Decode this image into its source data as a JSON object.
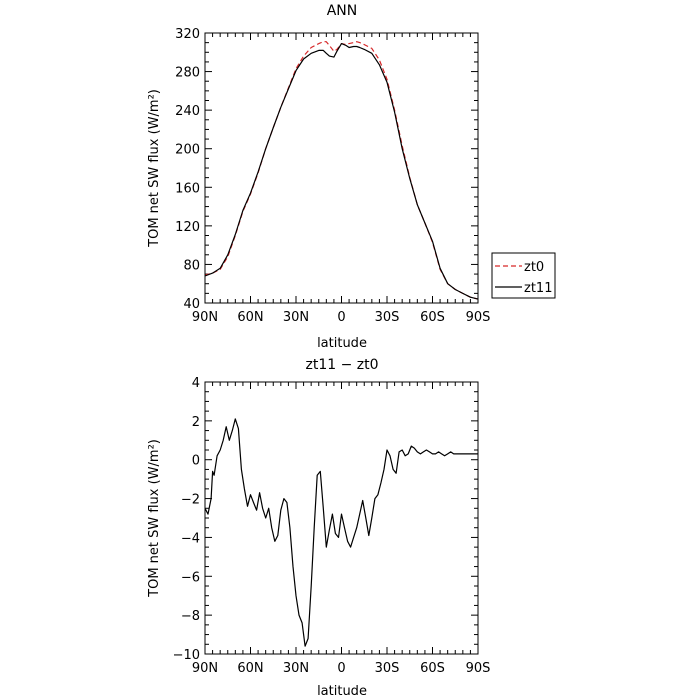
{
  "chart_data": [
    {
      "type": "line",
      "title": "ANN",
      "xlabel": "latitude",
      "ylabel": "TOM net SW flux (W/m²)",
      "xlim": [
        90,
        -90
      ],
      "ylim": [
        40,
        320
      ],
      "xticks": [
        90,
        60,
        30,
        0,
        -30,
        -60,
        -90
      ],
      "xtick_labels": [
        "90N",
        "60N",
        "30N",
        "0",
        "30S",
        "60S",
        "90S"
      ],
      "yticks": [
        40,
        80,
        120,
        160,
        200,
        240,
        280,
        320
      ],
      "ytick_labels": [
        "40",
        "80",
        "120",
        "160",
        "200",
        "240",
        "280",
        "320"
      ],
      "legend_position": "outside-right",
      "series": [
        {
          "name": "zt0",
          "color": "#d62728",
          "dash": "dashed",
          "x": [
            90,
            85,
            80,
            75,
            70,
            65,
            60,
            55,
            50,
            45,
            40,
            35,
            30,
            25,
            20,
            15,
            12,
            10,
            8,
            5,
            3,
            0,
            -3,
            -5,
            -8,
            -10,
            -12,
            -15,
            -20,
            -25,
            -30,
            -35,
            -40,
            -45,
            -50,
            -55,
            -60,
            -65,
            -70,
            -75,
            -80,
            -85,
            -90
          ],
          "y": [
            69,
            71,
            75,
            88,
            110,
            135,
            153,
            175,
            200,
            222,
            243,
            263,
            283,
            296,
            305,
            309,
            311,
            311,
            307,
            301,
            303,
            309,
            308,
            309,
            310,
            311,
            310,
            308,
            304,
            292,
            272,
            240,
            203,
            170,
            142,
            123,
            103,
            75,
            60,
            54,
            50,
            46,
            44
          ]
        },
        {
          "name": "zt11",
          "color": "#000000",
          "dash": "solid",
          "x": [
            90,
            85,
            80,
            75,
            70,
            65,
            60,
            55,
            50,
            45,
            40,
            35,
            30,
            25,
            20,
            15,
            12,
            10,
            8,
            5,
            3,
            0,
            -3,
            -5,
            -8,
            -10,
            -12,
            -15,
            -20,
            -25,
            -30,
            -35,
            -40,
            -45,
            -50,
            -55,
            -60,
            -65,
            -70,
            -75,
            -80,
            -85,
            -90
          ],
          "y": [
            68,
            71,
            76,
            90,
            111,
            136,
            154,
            176,
            200,
            222,
            243,
            262,
            281,
            293,
            299,
            302,
            302,
            299,
            296,
            295,
            301,
            309,
            307,
            305,
            306,
            306,
            305,
            303,
            299,
            287,
            269,
            238,
            200,
            169,
            142,
            123,
            104,
            76,
            60,
            54,
            50,
            46,
            44
          ]
        }
      ]
    },
    {
      "type": "line",
      "title": "zt11 − zt0",
      "xlabel": "latitude",
      "ylabel": "TOM net SW flux (W/m²)",
      "xlim": [
        90,
        -90
      ],
      "ylim": [
        -10,
        4
      ],
      "xticks": [
        90,
        60,
        30,
        0,
        -30,
        -60,
        -90
      ],
      "xtick_labels": [
        "90N",
        "60N",
        "30N",
        "0",
        "30S",
        "60S",
        "90S"
      ],
      "yticks": [
        -10,
        -8,
        -6,
        -4,
        -2,
        0,
        2,
        4
      ],
      "ytick_labels": [
        "−10",
        "−8",
        "−6",
        "−4",
        "−2",
        "0",
        "2",
        "4"
      ],
      "series": [
        {
          "color": "#000000",
          "dash": "solid",
          "x": [
            90,
            88,
            86,
            85,
            84,
            82,
            80,
            78,
            76,
            74,
            72,
            70,
            68,
            66,
            64,
            62,
            60,
            58,
            56,
            54,
            52,
            50,
            48,
            46,
            44,
            42,
            40,
            38,
            36,
            34,
            32,
            30,
            28,
            26,
            24,
            22,
            20,
            18,
            16,
            14,
            12,
            10,
            8,
            6,
            4,
            2,
            0,
            -2,
            -4,
            -6,
            -8,
            -10,
            -12,
            -14,
            -16,
            -18,
            -20,
            -22,
            -24,
            -26,
            -28,
            -30,
            -32,
            -34,
            -36,
            -38,
            -40,
            -42,
            -44,
            -46,
            -48,
            -50,
            -52,
            -54,
            -56,
            -58,
            -60,
            -62,
            -64,
            -66,
            -68,
            -70,
            -72,
            -74,
            -76,
            -78,
            -80,
            -82,
            -84,
            -86,
            -88,
            -90
          ],
          "y": [
            -2.5,
            -2.8,
            -2.0,
            -0.6,
            -0.8,
            0.2,
            0.5,
            1.0,
            1.7,
            1.0,
            1.5,
            2.1,
            1.6,
            -0.5,
            -1.5,
            -2.4,
            -1.8,
            -2.2,
            -2.6,
            -1.7,
            -2.5,
            -3.0,
            -2.5,
            -3.5,
            -4.2,
            -3.9,
            -2.6,
            -2.0,
            -2.2,
            -3.5,
            -5.5,
            -7.0,
            -8.0,
            -8.4,
            -9.6,
            -9.2,
            -6.5,
            -3.5,
            -0.8,
            -0.6,
            -2.5,
            -4.5,
            -3.6,
            -2.8,
            -3.8,
            -4.0,
            -2.8,
            -3.5,
            -4.2,
            -4.5,
            -4.0,
            -3.5,
            -2.8,
            -2.1,
            -3.0,
            -3.9,
            -3.0,
            -2.0,
            -1.8,
            -1.2,
            -0.5,
            0.5,
            0.2,
            -0.5,
            -0.7,
            0.4,
            0.5,
            0.2,
            0.3,
            0.7,
            0.6,
            0.4,
            0.3,
            0.4,
            0.5,
            0.4,
            0.3,
            0.3,
            0.4,
            0.3,
            0.2,
            0.3,
            0.4,
            0.3,
            0.3,
            0.3,
            0.3,
            0.3,
            0.3,
            0.3,
            0.3,
            0.3
          ]
        }
      ]
    }
  ]
}
